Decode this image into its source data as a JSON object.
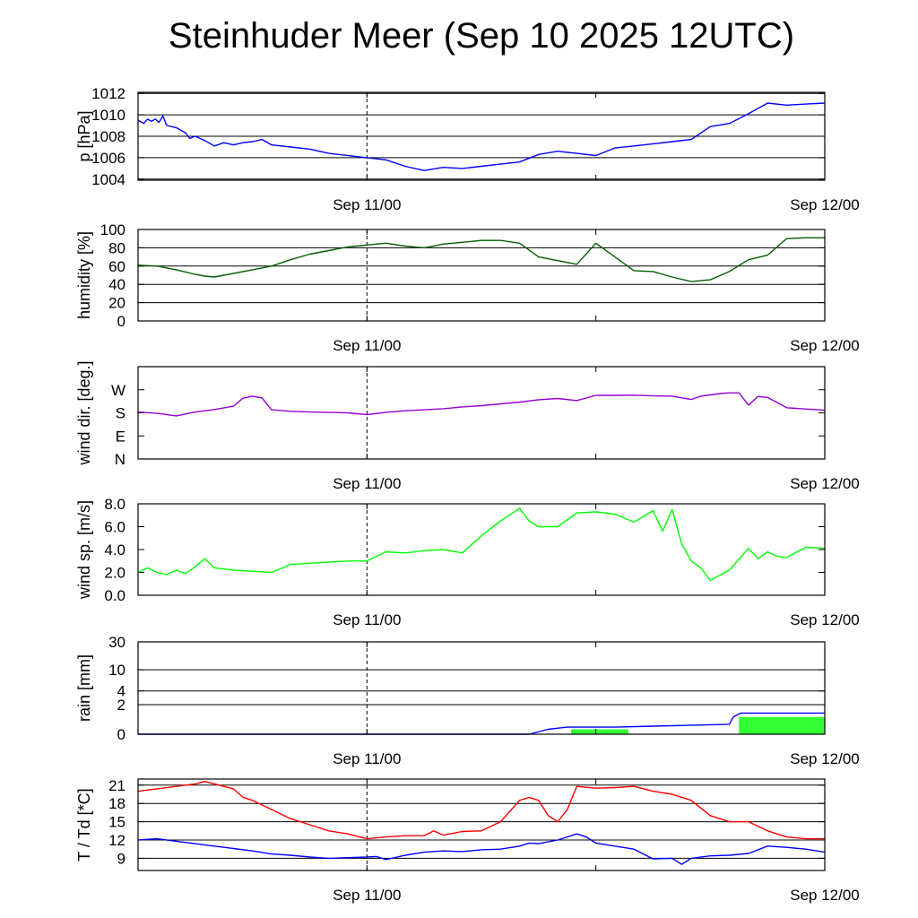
{
  "chart_data": {
    "title": "Steinhuder Meer (Sep 10 2025 12UTC)",
    "x_tick_labels": [
      "Sep 11/00",
      "Sep 12/00"
    ],
    "x_range_hours": [
      0,
      36
    ],
    "panels": [
      {
        "type": "line",
        "ylabel": "p [hPa]",
        "ylim": [
          1003.9,
          1012.1
        ],
        "yticks": [
          1004,
          1006,
          1008,
          1010,
          1012
        ],
        "ytick_labels": [
          "1004",
          "1006",
          "1008",
          "1010",
          "1012"
        ],
        "grid": true,
        "series": [
          {
            "color": "#0000ff",
            "x": [
              0,
              0.3,
              0.5,
              0.7,
              0.9,
              1.1,
              1.3,
              1.5,
              2,
              2.5,
              2.7,
              3,
              3.5,
              4,
              4.5,
              5,
              5.5,
              6,
              6.5,
              7,
              8,
              9,
              10,
              11,
              12,
              13,
              14,
              15,
              16,
              17,
              18,
              19,
              20,
              21,
              22,
              23,
              24,
              25,
              26,
              27,
              28,
              29,
              30,
              31,
              32,
              33,
              34,
              35,
              36
            ],
            "y": [
              1009.5,
              1009.2,
              1009.6,
              1009.4,
              1009.6,
              1009.3,
              1009.9,
              1009.0,
              1008.8,
              1008.3,
              1007.8,
              1008.0,
              1007.6,
              1007.1,
              1007.4,
              1007.2,
              1007.4,
              1007.5,
              1007.7,
              1007.2,
              1007.0,
              1006.8,
              1006.4,
              1006.2,
              1006.0,
              1005.8,
              1005.2,
              1004.8,
              1005.1,
              1005.0,
              1005.2,
              1005.4,
              1005.6,
              1006.3,
              1006.6,
              1006.4,
              1006.2,
              1006.9,
              1007.1,
              1007.3,
              1007.5,
              1007.7,
              1008.9,
              1009.2,
              1010.1,
              1011.1,
              1010.9,
              1011.0,
              1011.1
            ]
          }
        ]
      },
      {
        "type": "line",
        "ylabel": "humidity [%]",
        "ylim": [
          0,
          100
        ],
        "yticks": [
          0,
          20,
          40,
          60,
          80,
          100
        ],
        "ytick_labels": [
          "0",
          "20",
          "40",
          "60",
          "80",
          "100"
        ],
        "grid": true,
        "series": [
          {
            "color": "#005f00",
            "x": [
              0,
              1,
              2,
              3,
              3.5,
              4,
              5,
              6,
              7,
              8,
              9,
              10,
              11,
              12,
              13,
              14,
              15,
              16,
              17,
              18,
              19,
              20,
              21,
              22,
              23,
              24,
              25,
              26,
              27,
              28,
              29,
              30,
              31,
              32,
              33,
              34,
              35,
              36
            ],
            "y": [
              61,
              60,
              56,
              51,
              49,
              48,
              52,
              56,
              60,
              67,
              73,
              77,
              81,
              83,
              85,
              82,
              80,
              84,
              86,
              88,
              88,
              85,
              70,
              66,
              62,
              85,
              70,
              55,
              54,
              48,
              43,
              45,
              54,
              67,
              72,
              90,
              91,
              91
            ]
          }
        ]
      },
      {
        "type": "line",
        "ylabel": "wind dir. [deg.]",
        "ylim": [
          0,
          360
        ],
        "yticks": [
          0,
          90,
          180,
          270
        ],
        "ytick_labels": [
          "N",
          "E",
          "S",
          "W"
        ],
        "grid": false,
        "series": [
          {
            "color": "#9400d3",
            "x": [
              0,
              1,
              2,
              3,
              4,
              5,
              5.5,
              6,
              6.5,
              7,
              8,
              9,
              10,
              11,
              12,
              13,
              14,
              15,
              16,
              17,
              18,
              19,
              20,
              21,
              22,
              23,
              24,
              25,
              26,
              27,
              28,
              29,
              29.5,
              30,
              30.5,
              31,
              31.5,
              32,
              32.5,
              33,
              34,
              35,
              36
            ],
            "y": [
              183,
              178,
              168,
              183,
              193,
              206,
              237,
              245,
              238,
              192,
              186,
              183,
              182,
              180,
              173,
              182,
              188,
              192,
              196,
              203,
              208,
              215,
              222,
              231,
              236,
              228,
              248,
              248,
              249,
              246,
              245,
              232,
              245,
              250,
              255,
              258,
              258,
              210,
              244,
              240,
              200,
              195,
              190
            ]
          }
        ]
      },
      {
        "type": "line",
        "ylabel": "wind sp. [m/s]",
        "ylim": [
          0,
          8
        ],
        "yticks": [
          0,
          2,
          4,
          6,
          8
        ],
        "ytick_labels": [
          "0.0",
          "2.0",
          "4.0",
          "6.0",
          "8.0"
        ],
        "grid": false,
        "series": [
          {
            "color": "#00ff00",
            "x": [
              0,
              0.5,
              1,
              1.5,
              2,
              2.5,
              3,
              3.5,
              4,
              5,
              6,
              7,
              8,
              9,
              10,
              11,
              12,
              13,
              14,
              15,
              16,
              17,
              18,
              19,
              20,
              20.5,
              21,
              22,
              23,
              24,
              25,
              26,
              27,
              27.5,
              28,
              28.5,
              29,
              29.5,
              30,
              31,
              32,
              32.5,
              33,
              33.5,
              34,
              35,
              36
            ],
            "y": [
              2.0,
              2.4,
              2.0,
              1.8,
              2.2,
              1.9,
              2.5,
              3.2,
              2.4,
              2.2,
              2.1,
              2.0,
              2.7,
              2.8,
              2.9,
              3.0,
              3.0,
              3.8,
              3.7,
              3.9,
              4.0,
              3.7,
              5.2,
              6.5,
              7.6,
              6.5,
              6.0,
              6.0,
              7.2,
              7.3,
              7.1,
              6.4,
              7.4,
              5.6,
              7.5,
              4.5,
              3.0,
              2.4,
              1.3,
              2.2,
              4.1,
              3.2,
              3.8,
              3.4,
              3.3,
              4.2,
              4.1
            ]
          }
        ]
      },
      {
        "type": "line",
        "ylabel": "rain [mm]",
        "ylim": [
          0,
          30
        ],
        "yticks": [
          0,
          2,
          4,
          10,
          30
        ],
        "ytick_labels": [
          "0",
          "2",
          "4",
          "10",
          "30"
        ],
        "grid": true,
        "bars": [
          {
            "color": "#33ff33",
            "x0": 22.7,
            "x1": 25.7,
            "value": 0.2
          },
          {
            "color": "#33ff33",
            "x0": 31.5,
            "x1": 36,
            "value": 0.9
          }
        ],
        "series": [
          {
            "color": "#0000ff",
            "x": [
              0,
              20.5,
              21.5,
              22.5,
              25,
              27,
              31,
              31.2,
              31.6,
              36
            ],
            "y": [
              0,
              0,
              0.2,
              0.3,
              0.3,
              0.35,
              0.45,
              0.9,
              1.2,
              1.2
            ]
          }
        ]
      },
      {
        "type": "line",
        "ylabel": "T / Td [*C]",
        "ylim": [
          7,
          22
        ],
        "yticks": [
          9,
          12,
          15,
          18,
          21
        ],
        "ytick_labels": [
          "9",
          "12",
          "15",
          "18",
          "21"
        ],
        "grid": true,
        "series": [
          {
            "name": "T",
            "color": "#ff0000",
            "x": [
              0,
              1,
              2,
              3,
              3.5,
              4,
              4.5,
              5,
              5.5,
              6,
              7,
              8,
              9,
              10,
              11,
              12,
              13,
              14,
              15,
              15.5,
              16,
              17,
              18,
              19,
              20,
              20.5,
              21,
              21.5,
              22,
              22.5,
              23,
              24,
              25,
              26,
              27,
              28,
              29,
              30,
              31,
              32,
              33,
              34,
              35,
              36
            ],
            "y": [
              20.0,
              20.4,
              20.8,
              21.2,
              21.6,
              21.2,
              20.8,
              20.4,
              19.0,
              18.5,
              17.0,
              15.5,
              14.5,
              13.5,
              13.0,
              12.2,
              12.5,
              12.7,
              12.7,
              13.5,
              12.8,
              13.4,
              13.5,
              15.0,
              18.5,
              19.0,
              18.5,
              16.0,
              15.0,
              17.0,
              20.8,
              20.5,
              20.6,
              20.8,
              20.0,
              19.5,
              18.5,
              16.0,
              15.0,
              15.0,
              13.5,
              12.5,
              12.2,
              12.2
            ]
          },
          {
            "name": "Td",
            "color": "#0000ff",
            "x": [
              0,
              1,
              2,
              3,
              4,
              5,
              6,
              7,
              8,
              9,
              10,
              11,
              12,
              12.5,
              13,
              14,
              15,
              16,
              17,
              18,
              19,
              20,
              20.5,
              21,
              22,
              23,
              23.5,
              24,
              25,
              26,
              27,
              28,
              28.5,
              29,
              30,
              31,
              32,
              33,
              34,
              35,
              36
            ],
            "y": [
              12.0,
              12.2,
              11.8,
              11.4,
              11.0,
              10.6,
              10.2,
              9.7,
              9.5,
              9.2,
              9.0,
              9.1,
              9.2,
              9.3,
              8.8,
              9.5,
              10.0,
              10.2,
              10.1,
              10.4,
              10.5,
              11.0,
              11.5,
              11.4,
              12.0,
              13.0,
              12.5,
              11.5,
              11.0,
              10.5,
              8.9,
              9.0,
              8.0,
              9.0,
              9.4,
              9.5,
              9.8,
              11.0,
              10.8,
              10.5,
              10.0
            ]
          }
        ]
      }
    ]
  }
}
